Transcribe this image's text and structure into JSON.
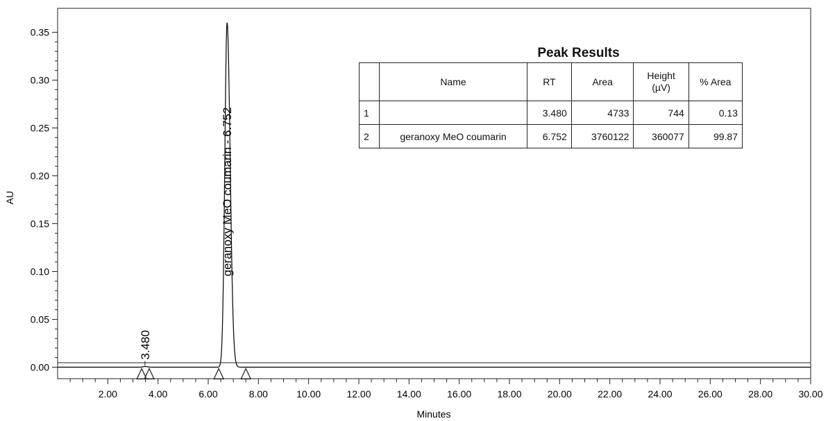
{
  "chart_data": {
    "type": "line",
    "xlabel": "Minutes",
    "ylabel": "AU",
    "xlim": [
      0.0,
      30.0
    ],
    "ylim": [
      -0.012,
      0.375
    ],
    "x_ticks": [
      "2.00",
      "4.00",
      "6.00",
      "8.00",
      "10.00",
      "12.00",
      "14.00",
      "16.00",
      "18.00",
      "20.00",
      "22.00",
      "24.00",
      "26.00",
      "28.00",
      "30.00"
    ],
    "y_ticks": [
      "0.00",
      "0.05",
      "0.10",
      "0.15",
      "0.20",
      "0.25",
      "0.30",
      "0.35"
    ],
    "peaks": [
      {
        "rt": 3.48,
        "height": 0.0007,
        "label": "3.480"
      },
      {
        "rt": 6.752,
        "height": 0.36,
        "label": "geranoxy MeO coumarin - 6.752"
      }
    ],
    "integration_markers": [
      3.35,
      3.65,
      6.42,
      7.5
    ]
  },
  "peak_results": {
    "title": "Peak Results",
    "headers": [
      "",
      "Name",
      "RT",
      "Area",
      "Height\n(µV)",
      "% Area"
    ],
    "rows": [
      {
        "index": "1",
        "name": "",
        "rt": "3.480",
        "area": "4733",
        "height": "744",
        "pct_area": "0.13"
      },
      {
        "index": "2",
        "name": "geranoxy MeO coumarin",
        "rt": "6.752",
        "area": "3760122",
        "height": "360077",
        "pct_area": "99.87"
      }
    ]
  }
}
